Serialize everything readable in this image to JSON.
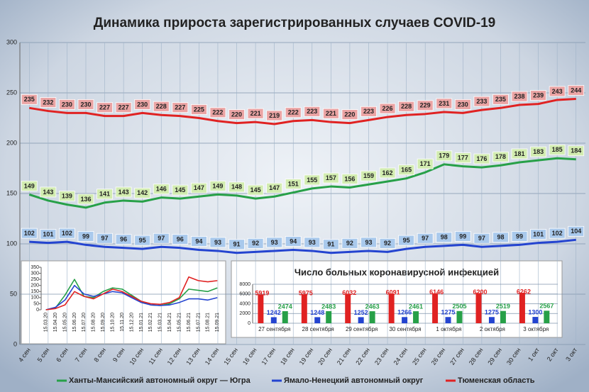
{
  "chart_data": [
    {
      "type": "line",
      "title": "Динамика прироста зарегистрированных случаев COVID-19",
      "categories": [
        "4 сен",
        "5 сен",
        "6 сен",
        "7 сен",
        "8 сен",
        "9 сен",
        "10 сен",
        "11 сен",
        "12 сен",
        "13 сен",
        "14 сен",
        "15 сен",
        "16 сен",
        "17 сен",
        "18 сен",
        "19 сен",
        "20 сен",
        "21 сен",
        "22 сен",
        "23 сен",
        "24 сен",
        "25 сен",
        "26 сен",
        "27 сен",
        "28 сен",
        "29 сен",
        "30 сен",
        "1 окт",
        "2 окт",
        "3 окт"
      ],
      "series": [
        {
          "name": "Ханты-Мансийский автономный округ — Югра",
          "color": "#27a048",
          "label_color": "#d2ecb0",
          "values": [
            149,
            143,
            139,
            136,
            141,
            143,
            142,
            146,
            145,
            147,
            149,
            148,
            145,
            147,
            151,
            155,
            157,
            156,
            159,
            162,
            165,
            171,
            179,
            177,
            176,
            178,
            181,
            183,
            185,
            184
          ]
        },
        {
          "name": "Ямало-Ненецкий автономный округ",
          "color": "#2444d0",
          "label_color": "#a9c9ec",
          "values": [
            102,
            101,
            102,
            99,
            97,
            96,
            95,
            97,
            96,
            94,
            93,
            91,
            92,
            93,
            94,
            93,
            91,
            92,
            93,
            92,
            95,
            97,
            98,
            99,
            97,
            98,
            99,
            101,
            102,
            104
          ]
        },
        {
          "name": "Тюменская область",
          "color": "#e02222",
          "label_color": "#eba4a4",
          "values": [
            235,
            232,
            230,
            230,
            227,
            227,
            230,
            228,
            227,
            225,
            222,
            220,
            221,
            219,
            222,
            223,
            221,
            220,
            223,
            226,
            228,
            229,
            231,
            230,
            233,
            235,
            238,
            239,
            243,
            244
          ]
        }
      ],
      "ylim": [
        0,
        300
      ],
      "yticks": [
        0,
        50,
        100,
        150,
        200,
        250,
        300
      ],
      "grid": true,
      "legend": "bottom"
    },
    {
      "type": "line",
      "categories": [
        "15.03.20",
        "15.04.20",
        "15.05.20",
        "15.06.20",
        "15.07.20",
        "15.08.20",
        "15.09.20",
        "15.10.20",
        "15.11.20",
        "15.12.20",
        "15.01.21",
        "15.02.21",
        "15.03.21",
        "15.04.21",
        "15.05.21",
        "15.06.21",
        "15.07.21",
        "15.08.21",
        "15.09.21"
      ],
      "series": [
        {
          "color": "#27a048",
          "values": [
            0,
            15,
            120,
            250,
            110,
            100,
            150,
            180,
            170,
            120,
            70,
            40,
            35,
            50,
            90,
            170,
            160,
            150,
            180
          ]
        },
        {
          "color": "#2444d0",
          "values": [
            0,
            20,
            80,
            200,
            130,
            110,
            130,
            150,
            140,
            100,
            60,
            40,
            35,
            40,
            60,
            90,
            90,
            80,
            100
          ]
        },
        {
          "color": "#e02222",
          "values": [
            0,
            10,
            40,
            150,
            110,
            90,
            130,
            170,
            150,
            110,
            70,
            50,
            45,
            60,
            100,
            270,
            240,
            230,
            240
          ]
        }
      ],
      "ylim": [
        0,
        350
      ],
      "yticks": [
        0,
        50,
        100,
        150,
        200,
        250,
        300,
        350
      ],
      "grid": false
    },
    {
      "type": "bar",
      "title": "Число больных коронавирусной  инфекцией",
      "categories": [
        "27 сентября",
        "28 сентября",
        "29 сентября",
        "30 сентября",
        "1 октября",
        "2 октября",
        "3 октября"
      ],
      "series": [
        {
          "color": "#e02222",
          "values": [
            5919,
            5975,
            6032,
            6091,
            6146,
            6200,
            6262
          ]
        },
        {
          "color": "#2444d0",
          "values": [
            1242,
            1248,
            1252,
            1266,
            1275,
            1275,
            1300
          ]
        },
        {
          "color": "#27a048",
          "values": [
            2474,
            2483,
            2463,
            2461,
            2505,
            2519,
            2567
          ]
        }
      ],
      "ylim": [
        0,
        8000
      ],
      "yticks": [
        0,
        2000,
        4000,
        6000,
        8000
      ],
      "grid": true
    }
  ]
}
